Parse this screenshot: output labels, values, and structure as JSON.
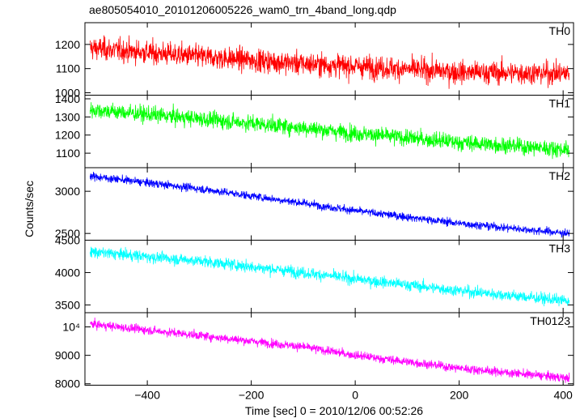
{
  "chart_data": {
    "title": "ae805054010_20101206005226_wam0_trn_4band_long.qdp",
    "xlabel": "Time [sec] 0 = 2010/12/06 00:52:26",
    "ylabel": "Counts/sec",
    "xlim": [
      -520,
      420
    ],
    "x_ticks": [
      -400,
      -200,
      0,
      200,
      400
    ],
    "x_tick_labels": [
      "−400",
      "−200",
      "0",
      "200",
      "400"
    ],
    "panels": [
      {
        "name": "TH0",
        "type": "line",
        "color": "#ff0000",
        "ylim": [
          990,
          1290
        ],
        "y_ticks": [
          1000,
          1100,
          1200
        ],
        "y_tick_labels": [
          "1000",
          "1100",
          "1200"
        ],
        "trend": {
          "x": [
            -510,
            -300,
            -100,
            0,
            200,
            410
          ],
          "y": [
            1185,
            1150,
            1120,
            1110,
            1085,
            1080
          ]
        },
        "noise": 40,
        "dip": null
      },
      {
        "name": "TH1",
        "type": "line",
        "color": "#00ff00",
        "ylim": [
          1020,
          1420
        ],
        "y_ticks": [
          1100,
          1200,
          1300,
          1400
        ],
        "y_tick_labels": [
          "1100",
          "1200",
          "1300",
          "1400"
        ],
        "trend": {
          "x": [
            -510,
            -300,
            -100,
            0,
            200,
            410
          ],
          "y": [
            1340,
            1290,
            1240,
            1210,
            1160,
            1120
          ]
        },
        "noise": 38,
        "dip": null
      },
      {
        "name": "TH2",
        "type": "line",
        "color": "#0000ff",
        "ylim": [
          2420,
          3280
        ],
        "y_ticks": [
          2500,
          3000
        ],
        "y_tick_labels": [
          "2500",
          "3000"
        ],
        "trend": {
          "x": [
            -510,
            -300,
            -100,
            0,
            200,
            410
          ],
          "y": [
            3180,
            3030,
            2860,
            2770,
            2620,
            2500
          ]
        },
        "noise": 40,
        "dip": null
      },
      {
        "name": "TH3",
        "type": "line",
        "color": "#00ffff",
        "ylim": [
          3380,
          4500
        ],
        "y_ticks": [
          3500,
          4000,
          4500
        ],
        "y_tick_labels": [
          "3500",
          "4000",
          "4500"
        ],
        "trend": {
          "x": [
            -510,
            -300,
            -100,
            0,
            200,
            410
          ],
          "y": [
            4320,
            4180,
            4000,
            3900,
            3720,
            3560
          ]
        },
        "noise": 75,
        "dip": null
      },
      {
        "name": "TH0123",
        "type": "line",
        "color": "#ff00ff",
        "ylim": [
          7950,
          10500
        ],
        "y_ticks": [
          8000,
          9000,
          10000
        ],
        "y_tick_labels": [
          "8000",
          "9000",
          "10⁴"
        ],
        "trend": {
          "x": [
            -510,
            -300,
            -100,
            0,
            200,
            410
          ],
          "y": [
            10100,
            9700,
            9300,
            9000,
            8550,
            8200
          ]
        },
        "noise": 130,
        "dip": null
      }
    ]
  }
}
